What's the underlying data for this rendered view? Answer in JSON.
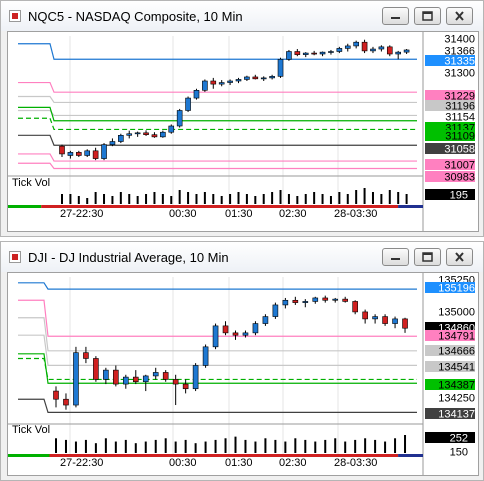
{
  "windows": [
    {
      "title": "NQC5 - NASDAQ Composite, 10 Min",
      "price_labels": [
        {
          "text": "31400",
          "bg": "",
          "fg": "#000000"
        },
        {
          "text": "31366",
          "bg": "#ffffff",
          "fg": "#000000"
        },
        {
          "text": "31335",
          "bg": "#1e90ff",
          "fg": "#ffffff"
        },
        {
          "text": "31300",
          "bg": "",
          "fg": "#000000"
        },
        {
          "text": "31229",
          "bg": "#ff80c0",
          "fg": "#000000"
        },
        {
          "text": "31196",
          "bg": "#c8c8c8",
          "fg": "#000000"
        },
        {
          "text": "31154",
          "bg": "#ffffff",
          "fg": "#000000"
        },
        {
          "text": "31137",
          "bg": "#00c000",
          "fg": "#000000"
        },
        {
          "text": "31109",
          "bg": "#00c000",
          "fg": "#000000"
        },
        {
          "text": "31058",
          "bg": "#404040",
          "fg": "#ffffff"
        },
        {
          "text": "31007",
          "bg": "#ff80c0",
          "fg": "#000000"
        },
        {
          "text": "30983",
          "bg": "#ff80c0",
          "fg": "#000000"
        }
      ],
      "volume_label": "Tick Vol",
      "volume_values": [
        {
          "text": "195",
          "bg": "#000000",
          "fg": "#ffffff"
        }
      ],
      "time_labels": [
        "27-22:30",
        "00:30",
        "01:30",
        "02:30",
        "28-03:30"
      ],
      "price_min": 30975,
      "price_max": 31410,
      "candles": [
        [
          31055,
          31060,
          31020,
          31030
        ],
        [
          31025,
          31040,
          31015,
          31035
        ],
        [
          31035,
          31040,
          31020,
          31025
        ],
        [
          31025,
          31045,
          31020,
          31040
        ],
        [
          31040,
          31050,
          31010,
          31015
        ],
        [
          31015,
          31065,
          31010,
          31060
        ],
        [
          31060,
          31080,
          31055,
          31070
        ],
        [
          31070,
          31095,
          31065,
          31090
        ],
        [
          31090,
          31105,
          31080,
          31095
        ],
        [
          31095,
          31102,
          31085,
          31098
        ],
        [
          31098,
          31106,
          31088,
          31092
        ],
        [
          31092,
          31100,
          31082,
          31085
        ],
        [
          31085,
          31105,
          31082,
          31100
        ],
        [
          31100,
          31125,
          31095,
          31120
        ],
        [
          31120,
          31175,
          31115,
          31170
        ],
        [
          31170,
          31215,
          31165,
          31210
        ],
        [
          31210,
          31240,
          31205,
          31235
        ],
        [
          31235,
          31270,
          31230,
          31265
        ],
        [
          31265,
          31275,
          31240,
          31255
        ],
        [
          31255,
          31268,
          31248,
          31260
        ],
        [
          31260,
          31270,
          31252,
          31265
        ],
        [
          31265,
          31275,
          31258,
          31270
        ],
        [
          31270,
          31282,
          31265,
          31278
        ],
        [
          31278,
          31285,
          31270,
          31272
        ],
        [
          31272,
          31280,
          31265,
          31275
        ],
        [
          31275,
          31285,
          31270,
          31280
        ],
        [
          31280,
          31340,
          31275,
          31335
        ],
        [
          31335,
          31365,
          31330,
          31360
        ],
        [
          31360,
          31368,
          31345,
          31350
        ],
        [
          31350,
          31358,
          31342,
          31355
        ],
        [
          31355,
          31362,
          31348,
          31352
        ],
        [
          31352,
          31360,
          31345,
          31358
        ],
        [
          31358,
          31365,
          31350,
          31360
        ],
        [
          31360,
          31375,
          31355,
          31370
        ],
        [
          31370,
          31385,
          31360,
          31378
        ],
        [
          31378,
          31395,
          31370,
          31390
        ],
        [
          31390,
          31398,
          31355,
          31362
        ],
        [
          31362,
          31375,
          31355,
          31368
        ],
        [
          31368,
          31380,
          31360,
          31375
        ],
        [
          31375,
          31380,
          31345,
          31352
        ],
        [
          31352,
          31362,
          31335,
          31358
        ],
        [
          31358,
          31368,
          31352,
          31365
        ]
      ],
      "lines": [
        {
          "color": "#1e78d2",
          "dash": false,
          "from": 0,
          "v1": 31385,
          "v2": 31335
        },
        {
          "color": "#ff80c0",
          "dash": false,
          "from": 0,
          "v1": 31260,
          "v2": 31229
        },
        {
          "color": "#c8c8c8",
          "dash": false,
          "from": 0,
          "v1": 31215,
          "v2": 31196
        },
        {
          "color": "#c8c8c8",
          "dash": false,
          "from": 0,
          "v1": 31170,
          "v2": 31154
        },
        {
          "color": "#00b000",
          "dash": false,
          "from": 0,
          "v1": 31180,
          "v2": 31137
        },
        {
          "color": "#00b000",
          "dash": true,
          "from": 0,
          "v1": 31145,
          "v2": 31109
        },
        {
          "color": "#404040",
          "dash": false,
          "from": 0,
          "v1": 31090,
          "v2": 31058
        },
        {
          "color": "#ff80c0",
          "dash": false,
          "from": 0,
          "v1": 31030,
          "v2": 31007
        },
        {
          "color": "#ff80c0",
          "dash": false,
          "from": 0,
          "v1": 31000,
          "v2": 30983
        }
      ],
      "volume": [
        5,
        5,
        4,
        3,
        6,
        5,
        4,
        6,
        5,
        4,
        5,
        6,
        5,
        4,
        7,
        6,
        5,
        6,
        5,
        4,
        5,
        6,
        5,
        4,
        5,
        6,
        7,
        5,
        4,
        5,
        6,
        5,
        4,
        6,
        5,
        7,
        8,
        6,
        5,
        7,
        6,
        5
      ],
      "session_bar": [
        {
          "color": "#00b000",
          "share": 0.08
        },
        {
          "color": "#d02020",
          "share": 0.86
        },
        {
          "color": "#203090",
          "share": 0.06
        }
      ]
    },
    {
      "title": "DJI - DJ Industrial Average, 10 Min",
      "price_labels": [
        {
          "text": "135250",
          "bg": "",
          "fg": "#000000"
        },
        {
          "text": "135196",
          "bg": "#1e90ff",
          "fg": "#ffffff"
        },
        {
          "text": "135000",
          "bg": "",
          "fg": "#000000"
        },
        {
          "text": "134860",
          "bg": "#000000",
          "fg": "#ffffff"
        },
        {
          "text": "134791",
          "bg": "#ff80c0",
          "fg": "#000000"
        },
        {
          "text": "134666",
          "bg": "#c8c8c8",
          "fg": "#000000"
        },
        {
          "text": "134541",
          "bg": "#c8c8c8",
          "fg": "#000000"
        },
        {
          "text": "134387",
          "bg": "#00c000",
          "fg": "#000000"
        },
        {
          "text": "134250",
          "bg": "",
          "fg": "#000000"
        },
        {
          "text": "134137",
          "bg": "#404040",
          "fg": "#ffffff"
        }
      ],
      "volume_label": "Tick Vol",
      "volume_values": [
        {
          "text": "252",
          "bg": "#000000",
          "fg": "#ffffff"
        },
        {
          "text": "150",
          "bg": "",
          "fg": "#000000"
        }
      ],
      "time_labels": [
        "27-22:30",
        "00:30",
        "01:30",
        "02:30",
        "28-03:30"
      ],
      "price_min": 134080,
      "price_max": 135300,
      "candles": [
        [
          134320,
          134360,
          134180,
          134250
        ],
        [
          134250,
          134300,
          134160,
          134200
        ],
        [
          134200,
          134700,
          134180,
          134650
        ],
        [
          134650,
          134700,
          134560,
          134600
        ],
        [
          134600,
          134620,
          134400,
          134420
        ],
        [
          134420,
          134520,
          134380,
          134500
        ],
        [
          134500,
          134540,
          134360,
          134380
        ],
        [
          134380,
          134460,
          134340,
          134440
        ],
        [
          134440,
          134500,
          134380,
          134400
        ],
        [
          134400,
          134460,
          134320,
          134450
        ],
        [
          134450,
          134520,
          134420,
          134480
        ],
        [
          134480,
          134500,
          134400,
          134420
        ],
        [
          134420,
          134460,
          134200,
          134380
        ],
        [
          134380,
          134420,
          134300,
          134340
        ],
        [
          134340,
          134560,
          134320,
          134540
        ],
        [
          134540,
          134720,
          134520,
          134700
        ],
        [
          134700,
          134900,
          134680,
          134880
        ],
        [
          134880,
          134920,
          134800,
          134820
        ],
        [
          134820,
          134840,
          134760,
          134800
        ],
        [
          134800,
          134840,
          134780,
          134820
        ],
        [
          134820,
          134920,
          134800,
          134900
        ],
        [
          134900,
          134980,
          134880,
          134960
        ],
        [
          134960,
          135080,
          134940,
          135060
        ],
        [
          135060,
          135120,
          135030,
          135100
        ],
        [
          135100,
          135130,
          135060,
          135080
        ],
        [
          135080,
          135110,
          135040,
          135090
        ],
        [
          135090,
          135130,
          135070,
          135120
        ],
        [
          135120,
          135140,
          135080,
          135100
        ],
        [
          135100,
          135120,
          135080,
          135110
        ],
        [
          135110,
          135130,
          135080,
          135090
        ],
        [
          135090,
          135100,
          134980,
          135000
        ],
        [
          135000,
          135020,
          134900,
          134940
        ],
        [
          134940,
          134980,
          134900,
          134960
        ],
        [
          134960,
          134980,
          134880,
          134900
        ],
        [
          134900,
          134960,
          134860,
          134940
        ],
        [
          134940,
          134950,
          134820,
          134860
        ]
      ],
      "lines": [
        {
          "color": "#1e78d2",
          "dash": false,
          "from": 0,
          "v1": 135250,
          "v2": 135196
        },
        {
          "color": "#ff80c0",
          "dash": false,
          "from": 0,
          "v1": 135100,
          "v2": 134791
        },
        {
          "color": "#c8c8c8",
          "dash": false,
          "from": 0,
          "v1": 134950,
          "v2": 134666
        },
        {
          "color": "#c8c8c8",
          "dash": false,
          "from": 0,
          "v1": 134800,
          "v2": 134541
        },
        {
          "color": "#00b000",
          "dash": false,
          "from": 0,
          "v1": 134640,
          "v2": 134387
        },
        {
          "color": "#00b000",
          "dash": true,
          "from": 0,
          "v1": 134600,
          "v2": 134420
        },
        {
          "color": "#404040",
          "dash": false,
          "from": 0,
          "v1": 134250,
          "v2": 134137
        }
      ],
      "volume": [
        9,
        8,
        7,
        8,
        6,
        9,
        7,
        8,
        6,
        7,
        8,
        9,
        7,
        8,
        6,
        7,
        8,
        9,
        10,
        8,
        7,
        9,
        8,
        7,
        9,
        8,
        7,
        8,
        9,
        7,
        8,
        9,
        8,
        7,
        9,
        11
      ],
      "session_bar": [
        {
          "color": "#00b000",
          "share": 0.1
        },
        {
          "color": "#d02020",
          "share": 0.84
        },
        {
          "color": "#203090",
          "share": 0.06
        }
      ]
    }
  ]
}
